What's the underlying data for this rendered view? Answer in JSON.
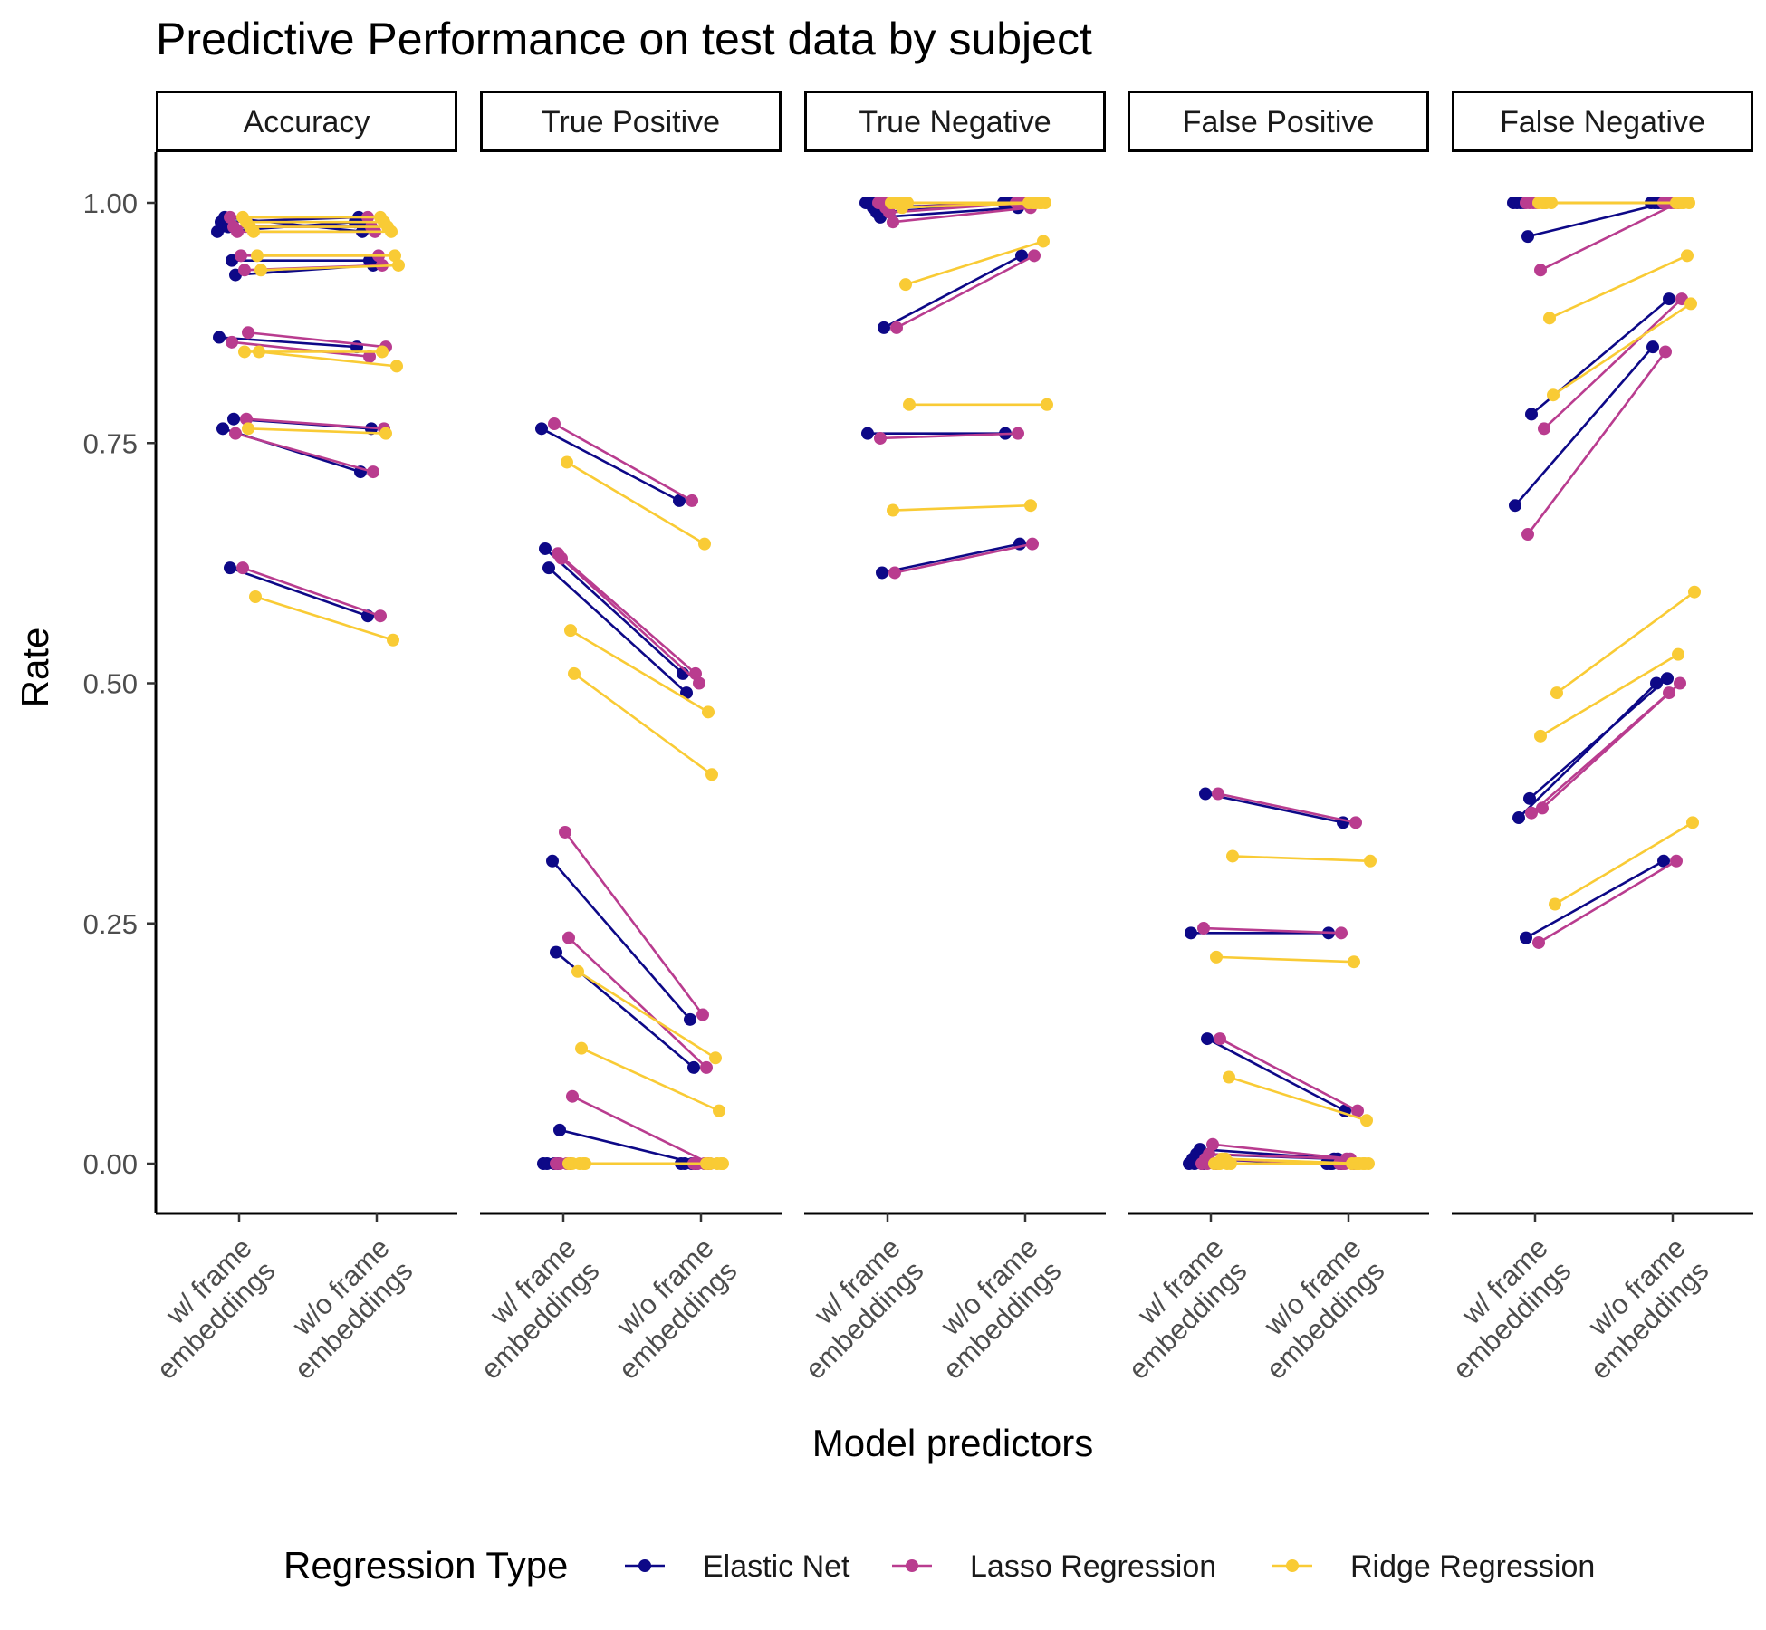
{
  "chart_data": {
    "type": "line",
    "title": "Predictive Performance on test data by subject",
    "xlabel": "Model predictors",
    "ylabel": "Rate",
    "ylim": [
      -0.05,
      1.05
    ],
    "yticks": [
      "0.00",
      "0.25",
      "0.50",
      "0.75",
      "1.00"
    ],
    "categories": [
      "w/ frame\nembeddings",
      "w/o frame\nembeddings"
    ],
    "facets": [
      "Accuracy",
      "True Positive",
      "True Negative",
      "False Positive",
      "False Negative"
    ],
    "legend": {
      "title": "Regression Type",
      "position": "bottom"
    },
    "grid": false,
    "series": [
      {
        "name": "Elastic Net",
        "color": "#0D0887",
        "panels": [
          [
            [
              0.97,
              0.98
            ],
            [
              0.98,
              0.985
            ],
            [
              0.985,
              0.97
            ],
            [
              0.975,
              0.975
            ],
            [
              0.94,
              0.94
            ],
            [
              0.925,
              0.935
            ],
            [
              0.86,
              0.85
            ],
            [
              0.775,
              0.765
            ],
            [
              0.765,
              0.72
            ],
            [
              0.62,
              0.57
            ]
          ],
          [
            [
              0.765,
              0.69
            ],
            [
              0.64,
              0.51
            ],
            [
              0.62,
              0.49
            ],
            [
              0.315,
              0.15
            ],
            [
              0.22,
              0.1
            ],
            [
              0.035,
              0.0
            ],
            [
              0.0,
              0.0
            ],
            [
              0.0,
              0.0
            ],
            [
              0.0,
              0.0
            ],
            [
              0.0,
              0.0
            ]
          ],
          [
            [
              1.0,
              1.0
            ],
            [
              1.0,
              1.0
            ],
            [
              0.995,
              1.0
            ],
            [
              0.99,
              1.0
            ],
            [
              0.985,
              0.995
            ],
            [
              0.87,
              0.945
            ],
            [
              0.76,
              0.76
            ],
            [
              0.615,
              0.645
            ],
            [
              1.0,
              1.0
            ],
            [
              1.0,
              1.0
            ]
          ],
          [
            [
              0.0,
              0.0
            ],
            [
              0.005,
              0.0
            ],
            [
              0.01,
              0.005
            ],
            [
              0.015,
              0.005
            ],
            [
              0.0,
              0.0
            ],
            [
              0.13,
              0.055
            ],
            [
              0.24,
              0.24
            ],
            [
              0.385,
              0.355
            ],
            [
              0.0,
              0.0
            ],
            [
              0.0,
              0.0
            ]
          ],
          [
            [
              1.0,
              1.0
            ],
            [
              1.0,
              1.0
            ],
            [
              1.0,
              1.0
            ],
            [
              1.0,
              1.0
            ],
            [
              0.965,
              1.0
            ],
            [
              0.78,
              0.9
            ],
            [
              0.685,
              0.85
            ],
            [
              0.38,
              0.505
            ],
            [
              0.36,
              0.5
            ],
            [
              0.235,
              0.315
            ]
          ]
        ]
      },
      {
        "name": "Lasso Regression",
        "color": "#B93C8F",
        "panels": [
          [
            [
              0.985,
              0.985
            ],
            [
              0.975,
              0.975
            ],
            [
              0.97,
              0.97
            ],
            [
              0.945,
              0.945
            ],
            [
              0.93,
              0.935
            ],
            [
              0.865,
              0.85
            ],
            [
              0.855,
              0.84
            ],
            [
              0.775,
              0.765
            ],
            [
              0.76,
              0.72
            ],
            [
              0.62,
              0.57
            ]
          ],
          [
            [
              0.77,
              0.69
            ],
            [
              0.635,
              0.51
            ],
            [
              0.63,
              0.5
            ],
            [
              0.345,
              0.155
            ],
            [
              0.235,
              0.1
            ],
            [
              0.07,
              0.0
            ],
            [
              0.0,
              0.0
            ],
            [
              0.0,
              0.0
            ],
            [
              0.0,
              0.0
            ],
            [
              0.0,
              0.0
            ]
          ],
          [
            [
              1.0,
              1.0
            ],
            [
              1.0,
              1.0
            ],
            [
              0.995,
              1.0
            ],
            [
              0.99,
              1.0
            ],
            [
              0.98,
              0.995
            ],
            [
              0.87,
              0.945
            ],
            [
              0.755,
              0.76
            ],
            [
              0.615,
              0.645
            ],
            [
              1.0,
              1.0
            ],
            [
              1.0,
              1.0
            ]
          ],
          [
            [
              0.0,
              0.0
            ],
            [
              0.005,
              0.0
            ],
            [
              0.01,
              0.005
            ],
            [
              0.02,
              0.005
            ],
            [
              0.0,
              0.0
            ],
            [
              0.13,
              0.055
            ],
            [
              0.245,
              0.24
            ],
            [
              0.385,
              0.355
            ],
            [
              0.0,
              0.0
            ],
            [
              0.0,
              0.0
            ]
          ],
          [
            [
              1.0,
              1.0
            ],
            [
              1.0,
              1.0
            ],
            [
              1.0,
              1.0
            ],
            [
              1.0,
              1.0
            ],
            [
              0.93,
              1.0
            ],
            [
              0.765,
              0.9
            ],
            [
              0.655,
              0.845
            ],
            [
              0.37,
              0.5
            ],
            [
              0.365,
              0.49
            ],
            [
              0.23,
              0.315
            ]
          ]
        ]
      },
      {
        "name": "Ridge Regression",
        "color": "#F9CB35",
        "panels": [
          [
            [
              0.985,
              0.985
            ],
            [
              0.98,
              0.98
            ],
            [
              0.975,
              0.975
            ],
            [
              0.97,
              0.97
            ],
            [
              0.945,
              0.945
            ],
            [
              0.93,
              0.935
            ],
            [
              0.845,
              0.845
            ],
            [
              0.845,
              0.83
            ],
            [
              0.765,
              0.76
            ],
            [
              0.59,
              0.545
            ]
          ],
          [
            [
              0.73,
              0.645
            ],
            [
              0.555,
              0.47
            ],
            [
              0.51,
              0.405
            ],
            [
              0.2,
              0.11
            ],
            [
              0.12,
              0.055
            ],
            [
              0.0,
              0.0
            ],
            [
              0.0,
              0.0
            ],
            [
              0.0,
              0.0
            ],
            [
              0.0,
              0.0
            ],
            [
              0.0,
              0.0
            ]
          ],
          [
            [
              1.0,
              1.0
            ],
            [
              1.0,
              1.0
            ],
            [
              1.0,
              1.0
            ],
            [
              0.995,
              1.0
            ],
            [
              0.915,
              0.96
            ],
            [
              0.79,
              0.79
            ],
            [
              0.68,
              0.685
            ],
            [
              1.0,
              1.0
            ],
            [
              1.0,
              1.0
            ],
            [
              1.0,
              1.0
            ]
          ],
          [
            [
              0.0,
              0.0
            ],
            [
              0.0,
              0.0
            ],
            [
              0.005,
              0.0
            ],
            [
              0.005,
              0.0
            ],
            [
              0.09,
              0.045
            ],
            [
              0.32,
              0.315
            ],
            [
              0.215,
              0.21
            ],
            [
              0.0,
              0.0
            ],
            [
              0.0,
              0.0
            ],
            [
              0.0,
              0.0
            ]
          ],
          [
            [
              1.0,
              1.0
            ],
            [
              1.0,
              1.0
            ],
            [
              1.0,
              1.0
            ],
            [
              0.88,
              0.945
            ],
            [
              0.8,
              0.895
            ],
            [
              0.49,
              0.595
            ],
            [
              0.445,
              0.53
            ],
            [
              0.27,
              0.355
            ],
            [
              1.0,
              1.0
            ],
            [
              1.0,
              1.0
            ]
          ]
        ]
      }
    ]
  }
}
